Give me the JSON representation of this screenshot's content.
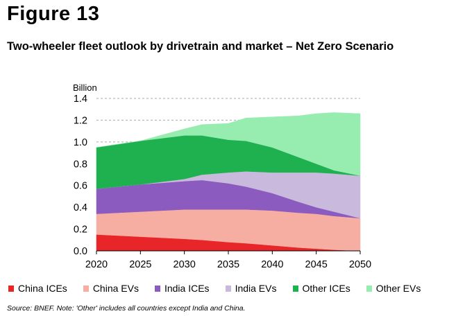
{
  "figure_label": "Figure 13",
  "chart_data": {
    "type": "area",
    "title": "Two-wheeler fleet outlook by drivetrain and market – Net Zero Scenario",
    "ylabel": "Billion",
    "xlabel": "",
    "stacked": true,
    "xlim": [
      2020,
      2050
    ],
    "ylim": [
      0,
      1.4
    ],
    "x_ticks": [
      2020,
      2025,
      2030,
      2035,
      2040,
      2045,
      2050
    ],
    "y_ticks": [
      "0.0",
      "0.2",
      "0.4",
      "0.6",
      "0.8",
      "1.0",
      "1.2",
      "1.4"
    ],
    "grid": "horizontal dashed",
    "legend_position": "bottom",
    "x": [
      2020,
      2025,
      2030,
      2032,
      2035,
      2037,
      2040,
      2043,
      2045,
      2047,
      2050
    ],
    "series": [
      {
        "name": "China ICEs",
        "color": "#e8262a",
        "values": [
          0.15,
          0.13,
          0.11,
          0.1,
          0.08,
          0.07,
          0.05,
          0.03,
          0.02,
          0.01,
          0.0
        ]
      },
      {
        "name": "China EVs",
        "color": "#f7aea2",
        "values": [
          0.19,
          0.23,
          0.27,
          0.28,
          0.3,
          0.31,
          0.32,
          0.32,
          0.32,
          0.31,
          0.3
        ]
      },
      {
        "name": "India ICEs",
        "color": "#8c5bbf",
        "values": [
          0.23,
          0.25,
          0.26,
          0.27,
          0.24,
          0.21,
          0.16,
          0.1,
          0.06,
          0.04,
          0.0
        ]
      },
      {
        "name": "India EVs",
        "color": "#c9b9dc",
        "values": [
          0.0,
          0.0,
          0.02,
          0.05,
          0.1,
          0.14,
          0.19,
          0.27,
          0.32,
          0.35,
          0.39
        ]
      },
      {
        "name": "Other ICEs",
        "color": "#1fb14f",
        "values": [
          0.38,
          0.4,
          0.4,
          0.36,
          0.3,
          0.28,
          0.23,
          0.14,
          0.08,
          0.03,
          0.0
        ]
      },
      {
        "name": "Other EVs",
        "color": "#97ecb0",
        "values": [
          0.0,
          0.0,
          0.06,
          0.1,
          0.15,
          0.21,
          0.28,
          0.38,
          0.46,
          0.53,
          0.57
        ]
      }
    ],
    "source_note": "Source: BNEF. Note: 'Other' includes all countries except India and China."
  }
}
